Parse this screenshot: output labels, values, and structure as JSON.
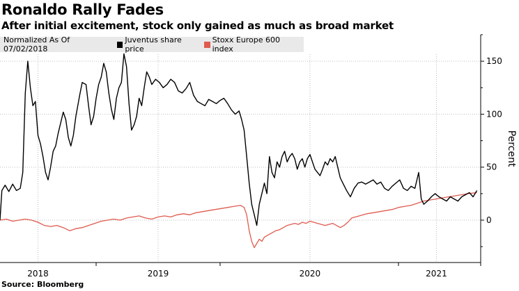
{
  "chart_data": {
    "type": "line",
    "title": "Ronaldo Rally Fades",
    "subtitle": "After initial excitement, stock only gained as much as broad market",
    "legend_label": "Normalized As Of 07/02/2018",
    "ylabel": "Percent",
    "source": "Source: Bloomberg",
    "ylim": [
      -40,
      175
    ],
    "yticks": [
      0,
      50,
      100,
      150
    ],
    "xlim": [
      0,
      38
    ],
    "xticks": [
      {
        "label": "2018",
        "x": 3
      },
      {
        "label": "2019",
        "x": 12.5
      },
      {
        "label": "2020",
        "x": 24.5
      },
      {
        "label": "2021",
        "x": 34.5
      }
    ],
    "grid": true,
    "legend_position": "top-left",
    "series": [
      {
        "name": "Juventus share price",
        "color": "#000000",
        "values": [
          [
            0,
            0
          ],
          [
            0.15,
            28
          ],
          [
            0.4,
            33
          ],
          [
            0.7,
            27
          ],
          [
            1.0,
            34
          ],
          [
            1.3,
            28
          ],
          [
            1.6,
            30
          ],
          [
            1.8,
            45
          ],
          [
            2.0,
            120
          ],
          [
            2.2,
            150
          ],
          [
            2.4,
            125
          ],
          [
            2.6,
            108
          ],
          [
            2.8,
            112
          ],
          [
            3.0,
            80
          ],
          [
            3.2,
            72
          ],
          [
            3.4,
            60
          ],
          [
            3.6,
            45
          ],
          [
            3.8,
            38
          ],
          [
            4.0,
            50
          ],
          [
            4.2,
            65
          ],
          [
            4.4,
            70
          ],
          [
            4.6,
            82
          ],
          [
            4.8,
            92
          ],
          [
            5.0,
            102
          ],
          [
            5.2,
            95
          ],
          [
            5.4,
            78
          ],
          [
            5.6,
            70
          ],
          [
            5.8,
            80
          ],
          [
            6.0,
            98
          ],
          [
            6.3,
            118
          ],
          [
            6.5,
            130
          ],
          [
            6.8,
            128
          ],
          [
            7.0,
            108
          ],
          [
            7.2,
            90
          ],
          [
            7.4,
            98
          ],
          [
            7.6,
            115
          ],
          [
            7.8,
            128
          ],
          [
            8.0,
            135
          ],
          [
            8.2,
            148
          ],
          [
            8.4,
            140
          ],
          [
            8.6,
            120
          ],
          [
            8.8,
            105
          ],
          [
            9.0,
            95
          ],
          [
            9.2,
            115
          ],
          [
            9.4,
            125
          ],
          [
            9.6,
            130
          ],
          [
            9.8,
            157
          ],
          [
            10.0,
            145
          ],
          [
            10.2,
            110
          ],
          [
            10.4,
            85
          ],
          [
            10.6,
            90
          ],
          [
            10.8,
            98
          ],
          [
            11.0,
            115
          ],
          [
            11.2,
            108
          ],
          [
            11.4,
            125
          ],
          [
            11.6,
            140
          ],
          [
            11.8,
            135
          ],
          [
            12.0,
            128
          ],
          [
            12.3,
            133
          ],
          [
            12.6,
            130
          ],
          [
            12.9,
            125
          ],
          [
            13.2,
            128
          ],
          [
            13.5,
            133
          ],
          [
            13.8,
            130
          ],
          [
            14.1,
            122
          ],
          [
            14.4,
            120
          ],
          [
            14.7,
            124
          ],
          [
            15.0,
            130
          ],
          [
            15.3,
            118
          ],
          [
            15.6,
            112
          ],
          [
            15.9,
            110
          ],
          [
            16.2,
            108
          ],
          [
            16.5,
            114
          ],
          [
            16.8,
            112
          ],
          [
            17.1,
            110
          ],
          [
            17.4,
            113
          ],
          [
            17.7,
            115
          ],
          [
            18.0,
            110
          ],
          [
            18.3,
            104
          ],
          [
            18.6,
            100
          ],
          [
            18.9,
            103
          ],
          [
            19.1,
            95
          ],
          [
            19.3,
            85
          ],
          [
            19.5,
            60
          ],
          [
            19.7,
            35
          ],
          [
            19.9,
            15
          ],
          [
            20.1,
            5
          ],
          [
            20.3,
            -5
          ],
          [
            20.5,
            15
          ],
          [
            20.7,
            25
          ],
          [
            20.9,
            35
          ],
          [
            21.1,
            25
          ],
          [
            21.3,
            60
          ],
          [
            21.5,
            45
          ],
          [
            21.7,
            40
          ],
          [
            21.9,
            55
          ],
          [
            22.1,
            50
          ],
          [
            22.3,
            60
          ],
          [
            22.5,
            65
          ],
          [
            22.7,
            55
          ],
          [
            22.9,
            60
          ],
          [
            23.1,
            63
          ],
          [
            23.3,
            58
          ],
          [
            23.5,
            48
          ],
          [
            23.7,
            55
          ],
          [
            23.9,
            58
          ],
          [
            24.1,
            50
          ],
          [
            24.3,
            58
          ],
          [
            24.5,
            62
          ],
          [
            24.7,
            55
          ],
          [
            24.9,
            48
          ],
          [
            25.1,
            45
          ],
          [
            25.3,
            42
          ],
          [
            25.5,
            48
          ],
          [
            25.7,
            55
          ],
          [
            25.9,
            52
          ],
          [
            26.1,
            58
          ],
          [
            26.3,
            55
          ],
          [
            26.5,
            60
          ],
          [
            26.7,
            50
          ],
          [
            26.9,
            40
          ],
          [
            27.1,
            35
          ],
          [
            27.4,
            28
          ],
          [
            27.7,
            22
          ],
          [
            28.0,
            30
          ],
          [
            28.3,
            35
          ],
          [
            28.6,
            36
          ],
          [
            28.9,
            34
          ],
          [
            29.2,
            36
          ],
          [
            29.5,
            38
          ],
          [
            29.8,
            34
          ],
          [
            30.1,
            36
          ],
          [
            30.4,
            30
          ],
          [
            30.7,
            28
          ],
          [
            31.0,
            32
          ],
          [
            31.3,
            35
          ],
          [
            31.6,
            38
          ],
          [
            31.9,
            30
          ],
          [
            32.2,
            28
          ],
          [
            32.5,
            32
          ],
          [
            32.8,
            30
          ],
          [
            33.1,
            45
          ],
          [
            33.3,
            20
          ],
          [
            33.5,
            15
          ],
          [
            33.8,
            18
          ],
          [
            34.1,
            22
          ],
          [
            34.4,
            25
          ],
          [
            34.7,
            22
          ],
          [
            35.0,
            20
          ],
          [
            35.3,
            18
          ],
          [
            35.6,
            22
          ],
          [
            35.9,
            20
          ],
          [
            36.2,
            18
          ],
          [
            36.5,
            22
          ],
          [
            36.8,
            24
          ],
          [
            37.1,
            26
          ],
          [
            37.4,
            22
          ],
          [
            37.7,
            28
          ]
        ]
      },
      {
        "name": "Stoxx Europe 600 index",
        "color": "#e05a4f",
        "values": [
          [
            0,
            0
          ],
          [
            0.5,
            1
          ],
          [
            1.0,
            -1
          ],
          [
            1.5,
            0
          ],
          [
            2.0,
            1
          ],
          [
            2.5,
            0
          ],
          [
            3.0,
            -2
          ],
          [
            3.5,
            -5
          ],
          [
            4.0,
            -6
          ],
          [
            4.5,
            -5
          ],
          [
            5.0,
            -7
          ],
          [
            5.5,
            -10
          ],
          [
            6.0,
            -8
          ],
          [
            6.5,
            -7
          ],
          [
            7.0,
            -5
          ],
          [
            7.5,
            -3
          ],
          [
            8.0,
            -1
          ],
          [
            8.5,
            0
          ],
          [
            9.0,
            1
          ],
          [
            9.5,
            0
          ],
          [
            10.0,
            2
          ],
          [
            10.5,
            3
          ],
          [
            11.0,
            4
          ],
          [
            11.5,
            2
          ],
          [
            12.0,
            1
          ],
          [
            12.5,
            3
          ],
          [
            13.0,
            4
          ],
          [
            13.5,
            3
          ],
          [
            14.0,
            5
          ],
          [
            14.5,
            6
          ],
          [
            15.0,
            5
          ],
          [
            15.5,
            7
          ],
          [
            16.0,
            8
          ],
          [
            16.5,
            9
          ],
          [
            17.0,
            10
          ],
          [
            17.5,
            11
          ],
          [
            18.0,
            12
          ],
          [
            18.5,
            13
          ],
          [
            19.0,
            14
          ],
          [
            19.3,
            12
          ],
          [
            19.5,
            5
          ],
          [
            19.7,
            -10
          ],
          [
            19.9,
            -20
          ],
          [
            20.1,
            -26
          ],
          [
            20.3,
            -22
          ],
          [
            20.5,
            -18
          ],
          [
            20.7,
            -20
          ],
          [
            20.9,
            -16
          ],
          [
            21.2,
            -14
          ],
          [
            21.5,
            -12
          ],
          [
            21.8,
            -10
          ],
          [
            22.1,
            -9
          ],
          [
            22.4,
            -7
          ],
          [
            22.7,
            -5
          ],
          [
            23.0,
            -4
          ],
          [
            23.3,
            -3
          ],
          [
            23.6,
            -4
          ],
          [
            23.9,
            -2
          ],
          [
            24.2,
            -3
          ],
          [
            24.5,
            -1
          ],
          [
            24.8,
            -2
          ],
          [
            25.1,
            -3
          ],
          [
            25.4,
            -4
          ],
          [
            25.7,
            -5
          ],
          [
            26.0,
            -4
          ],
          [
            26.3,
            -3
          ],
          [
            26.6,
            -5
          ],
          [
            26.9,
            -7
          ],
          [
            27.2,
            -5
          ],
          [
            27.5,
            -2
          ],
          [
            27.8,
            2
          ],
          [
            28.1,
            3
          ],
          [
            28.4,
            4
          ],
          [
            28.7,
            5
          ],
          [
            29.0,
            6
          ],
          [
            29.5,
            7
          ],
          [
            30.0,
            8
          ],
          [
            30.5,
            9
          ],
          [
            31.0,
            10
          ],
          [
            31.5,
            12
          ],
          [
            32.0,
            13
          ],
          [
            32.5,
            14
          ],
          [
            33.0,
            16
          ],
          [
            33.5,
            18
          ],
          [
            34.0,
            19
          ],
          [
            34.5,
            20
          ],
          [
            35.0,
            21
          ],
          [
            35.5,
            22
          ],
          [
            36.0,
            23
          ],
          [
            36.5,
            24
          ],
          [
            37.0,
            25
          ],
          [
            37.7,
            26
          ]
        ]
      }
    ]
  }
}
